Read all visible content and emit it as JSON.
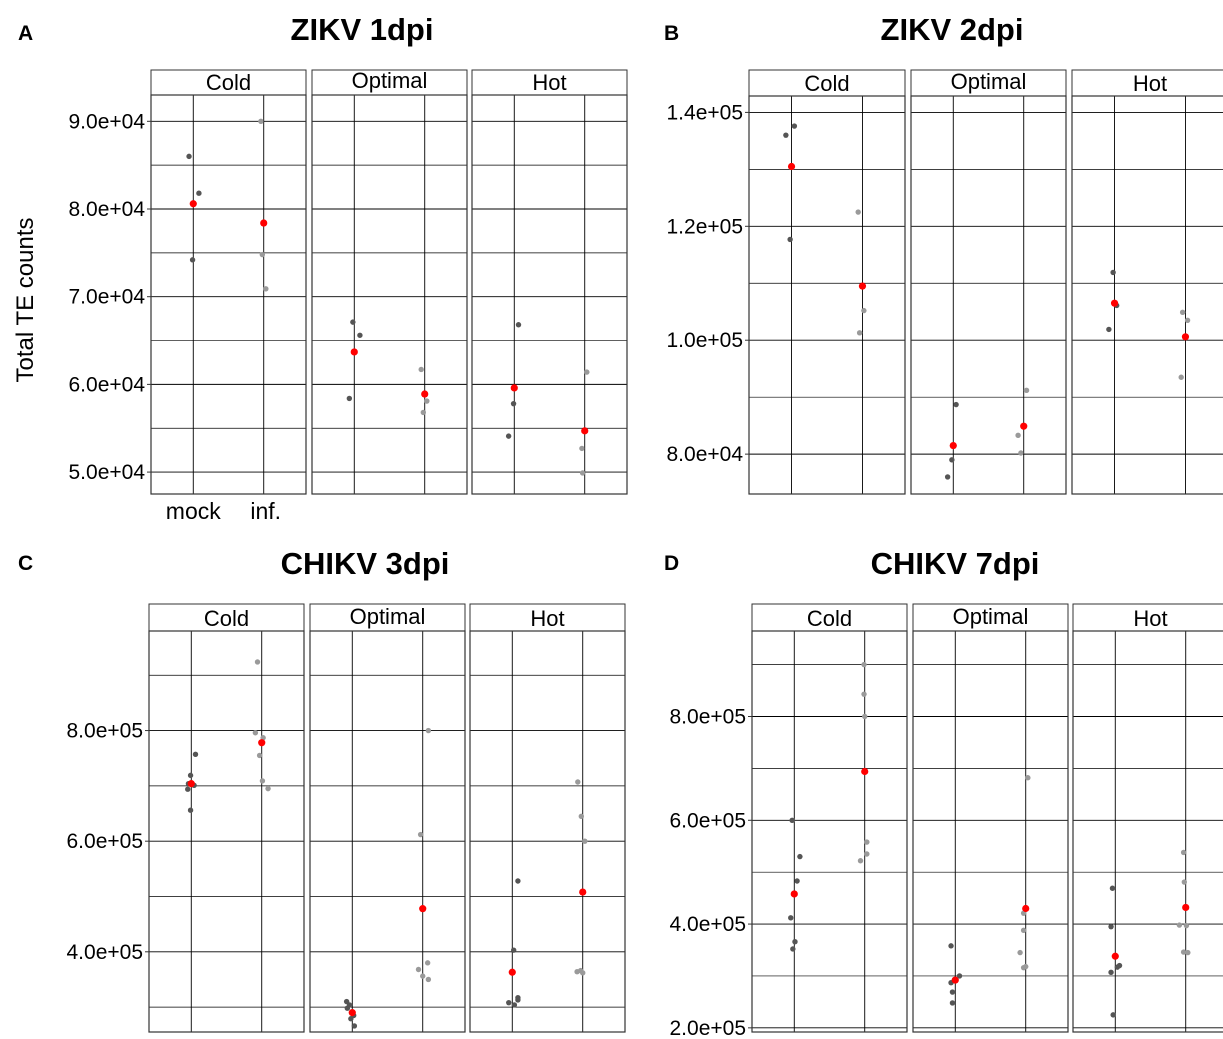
{
  "y_axis_label": "Total TE counts",
  "x_tick_labels": [
    "mock",
    "inf."
  ],
  "colors": {
    "mean": "#ff0000",
    "mock_points": "#555555",
    "inf_points": "#9a9a9a",
    "grid": "#000000"
  },
  "chart_data": [
    {
      "type": "scatter",
      "panel": "A",
      "title": "ZIKV 1dpi",
      "facets": [
        "Cold",
        "Optimal",
        "Hot"
      ],
      "categories": [
        "mock",
        "inf."
      ],
      "ylim": [
        47500,
        93000
      ],
      "y_ticks": [
        50000,
        60000,
        70000,
        80000,
        90000
      ],
      "y_tick_labels": [
        "5.0e+04",
        "6.0e+04",
        "7.0e+04",
        "8.0e+04",
        "9.0e+04"
      ],
      "minor_ticks": [
        55000,
        65000,
        75000,
        85000
      ],
      "show_x_labels": true,
      "groups": [
        {
          "facet": "Cold",
          "category": "mock",
          "mean": 80600,
          "points": [
            [
              -0.06,
              86000
            ],
            [
              0.08,
              81800
            ],
            [
              -0.01,
              74200
            ]
          ]
        },
        {
          "facet": "Cold",
          "category": "inf.",
          "mean": 78400,
          "points": [
            [
              -0.04,
              90000
            ],
            [
              -0.02,
              74800
            ],
            [
              0.03,
              70900
            ]
          ]
        },
        {
          "facet": "Optimal",
          "category": "mock",
          "mean": 63700,
          "points": [
            [
              -0.02,
              67100
            ],
            [
              0.08,
              65600
            ],
            [
              -0.07,
              58400
            ]
          ]
        },
        {
          "facet": "Optimal",
          "category": "inf.",
          "mean": 58900,
          "points": [
            [
              -0.05,
              61700
            ],
            [
              0.03,
              58100
            ],
            [
              -0.02,
              56800
            ]
          ]
        },
        {
          "facet": "Hot",
          "category": "mock",
          "mean": 59600,
          "points": [
            [
              0.06,
              66800
            ],
            [
              -0.01,
              57800
            ],
            [
              -0.08,
              54100
            ]
          ]
        },
        {
          "facet": "Hot",
          "category": "inf.",
          "mean": 54700,
          "points": [
            [
              0.03,
              61400
            ],
            [
              -0.04,
              52700
            ],
            [
              -0.03,
              49900
            ]
          ]
        }
      ]
    },
    {
      "type": "scatter",
      "panel": "B",
      "title": "ZIKV 2dpi",
      "facets": [
        "Cold",
        "Optimal",
        "Hot"
      ],
      "categories": [
        "mock",
        "inf."
      ],
      "ylim": [
        73000,
        142000
      ],
      "y_ticks": [
        80000,
        100000,
        120000,
        140000
      ],
      "y_tick_labels": [
        "8.0e+04",
        "1.0e+05",
        "1.2e+05",
        "1.4e+05"
      ],
      "minor_ticks": [
        90000,
        110000,
        130000
      ],
      "show_x_labels": false,
      "groups": [
        {
          "facet": "Cold",
          "category": "mock",
          "mean": 130500,
          "points": [
            [
              -0.08,
              136000
            ],
            [
              0.04,
              137600
            ],
            [
              -0.02,
              117700
            ]
          ]
        },
        {
          "facet": "Cold",
          "category": "inf.",
          "mean": 109500,
          "points": [
            [
              -0.06,
              122500
            ],
            [
              0.02,
              105200
            ],
            [
              -0.04,
              101300
            ]
          ]
        },
        {
          "facet": "Optimal",
          "category": "mock",
          "mean": 81500,
          "points": [
            [
              0.04,
              88700
            ],
            [
              -0.02,
              79000
            ],
            [
              -0.08,
              76000
            ]
          ]
        },
        {
          "facet": "Optimal",
          "category": "inf.",
          "mean": 84900,
          "points": [
            [
              0.04,
              91200
            ],
            [
              -0.08,
              83300
            ],
            [
              -0.04,
              80200
            ]
          ]
        },
        {
          "facet": "Hot",
          "category": "mock",
          "mean": 106500,
          "points": [
            [
              -0.02,
              111900
            ],
            [
              0.03,
              106100
            ],
            [
              -0.08,
              101900
            ]
          ]
        },
        {
          "facet": "Hot",
          "category": "inf.",
          "mean": 100600,
          "points": [
            [
              -0.04,
              104900
            ],
            [
              0.03,
              103500
            ],
            [
              -0.06,
              93500
            ]
          ]
        }
      ]
    },
    {
      "type": "scatter",
      "panel": "C",
      "title": "CHIKV 3dpi",
      "facets": [
        "Cold",
        "Optimal",
        "Hot"
      ],
      "categories": [
        "mock",
        "inf."
      ],
      "ylim": [
        255000,
        980000
      ],
      "y_ticks": [
        400000,
        600000,
        800000
      ],
      "y_tick_labels": [
        "4.0e+05",
        "6.0e+05",
        "8.0e+05"
      ],
      "minor_ticks": [
        300000,
        500000,
        700000,
        900000
      ],
      "show_x_labels": false,
      "groups": [
        {
          "facet": "Cold",
          "category": "mock",
          "mean": 704000,
          "points": [
            [
              0.06,
              757000
            ],
            [
              -0.01,
              719000
            ],
            [
              -0.04,
              704000
            ],
            [
              0.04,
              701000
            ],
            [
              -0.05,
              694000
            ],
            [
              -0.01,
              656000
            ]
          ]
        },
        {
          "facet": "Cold",
          "category": "inf.",
          "mean": 778000,
          "points": [
            [
              -0.06,
              924000
            ],
            [
              -0.09,
              796000
            ],
            [
              0.02,
              787000
            ],
            [
              -0.03,
              755000
            ],
            [
              0.01,
              709000
            ],
            [
              0.09,
              695000
            ]
          ]
        },
        {
          "facet": "Optimal",
          "category": "mock",
          "mean": 290000,
          "points": [
            [
              -0.08,
              310000
            ],
            [
              -0.04,
              304000
            ],
            [
              -0.07,
              298000
            ],
            [
              0.02,
              285000
            ],
            [
              -0.02,
              279000
            ],
            [
              0.03,
              266000
            ]
          ]
        },
        {
          "facet": "Optimal",
          "category": "inf.",
          "mean": 478000,
          "points": [
            [
              0.08,
              800000
            ],
            [
              -0.03,
              612000
            ],
            [
              0.07,
              380000
            ],
            [
              -0.06,
              368000
            ],
            [
              0.0,
              356000
            ],
            [
              0.08,
              350000
            ]
          ]
        },
        {
          "facet": "Hot",
          "category": "mock",
          "mean": 363000,
          "points": [
            [
              0.08,
              528000
            ],
            [
              0.02,
              403000
            ],
            [
              0.08,
              317000
            ],
            [
              -0.05,
              308000
            ],
            [
              0.03,
              304000
            ],
            [
              0.08,
              313000
            ]
          ]
        },
        {
          "facet": "Hot",
          "category": "inf.",
          "mean": 508000,
          "points": [
            [
              -0.07,
              707000
            ],
            [
              -0.02,
              645000
            ],
            [
              0.03,
              600000
            ],
            [
              -0.08,
              364000
            ],
            [
              -0.03,
              366000
            ],
            [
              0.0,
              362000
            ]
          ]
        }
      ]
    },
    {
      "type": "scatter",
      "panel": "D",
      "title": "CHIKV 7dpi",
      "facets": [
        "Cold",
        "Optimal",
        "Hot"
      ],
      "categories": [
        "mock",
        "inf."
      ],
      "ylim": [
        192000,
        932000
      ],
      "y_ticks": [
        200000,
        400000,
        600000,
        800000
      ],
      "y_tick_labels": [
        "2.0e+05",
        "4.0e+05",
        "6.0e+05",
        "8.0e+05"
      ],
      "minor_ticks": [
        300000,
        500000,
        700000,
        900000
      ],
      "show_x_labels": false,
      "groups": [
        {
          "facet": "Cold",
          "category": "mock",
          "mean": 458000,
          "points": [
            [
              -0.03,
              600000
            ],
            [
              0.08,
              530000
            ],
            [
              0.04,
              483000
            ],
            [
              -0.05,
              412000
            ],
            [
              0.01,
              366000
            ],
            [
              -0.02,
              352000
            ]
          ]
        },
        {
          "facet": "Cold",
          "category": "inf.",
          "mean": 694000,
          "points": [
            [
              -0.01,
              900000
            ],
            [
              -0.01,
              843000
            ],
            [
              0.0,
              800000
            ],
            [
              0.03,
              558000
            ],
            [
              0.03,
              535000
            ],
            [
              -0.06,
              522000
            ]
          ]
        },
        {
          "facet": "Optimal",
          "category": "mock",
          "mean": 292000,
          "points": [
            [
              -0.06,
              358000
            ],
            [
              0.06,
              300000
            ],
            [
              -0.01,
              293000
            ],
            [
              -0.06,
              287000
            ],
            [
              -0.04,
              269000
            ],
            [
              -0.04,
              248000
            ]
          ]
        },
        {
          "facet": "Optimal",
          "category": "inf.",
          "mean": 430000,
          "points": [
            [
              0.03,
              682000
            ],
            [
              -0.03,
              421000
            ],
            [
              -0.03,
              388000
            ],
            [
              -0.08,
              345000
            ],
            [
              -0.03,
              316000
            ],
            [
              0.0,
              318000
            ]
          ]
        },
        {
          "facet": "Hot",
          "category": "mock",
          "mean": 338000,
          "points": [
            [
              -0.04,
              469000
            ],
            [
              -0.06,
              395000
            ],
            [
              -0.06,
              307000
            ],
            [
              0.03,
              317000
            ],
            [
              0.06,
              320000
            ],
            [
              -0.03,
              225000
            ]
          ]
        },
        {
          "facet": "Hot",
          "category": "inf.",
          "mean": 432000,
          "points": [
            [
              -0.03,
              538000
            ],
            [
              -0.02,
              481000
            ],
            [
              -0.09,
              398000
            ],
            [
              0.01,
              397000
            ],
            [
              -0.03,
              346000
            ],
            [
              0.03,
              345000
            ]
          ]
        }
      ]
    }
  ]
}
